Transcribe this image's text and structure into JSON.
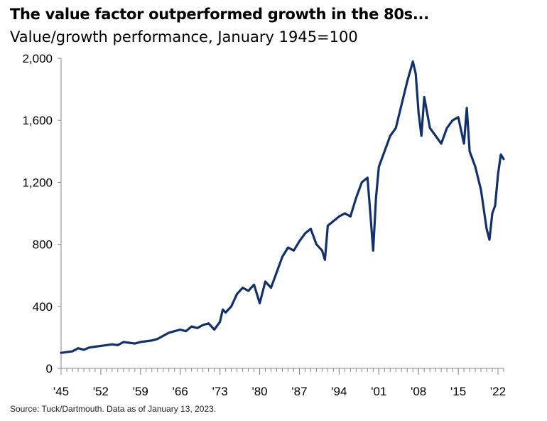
{
  "chart_data": {
    "type": "line",
    "title": "The value factor outperformed growth in the 80s...",
    "subtitle": "Value/growth performance, January 1945=100",
    "source": "Source: Tuck/Dartmouth. Data as of January 13, 2023.",
    "xlabel": "",
    "ylabel": "",
    "xlim": [
      1945,
      2023
    ],
    "ylim": [
      0,
      2000
    ],
    "y_ticks": [
      0,
      400,
      800,
      1200,
      1600,
      2000
    ],
    "y_tick_labels": [
      "0",
      "400",
      "800",
      "1,200",
      "1,600",
      "2,000"
    ],
    "x_ticks": [
      1945,
      1952,
      1959,
      1966,
      1973,
      1980,
      1987,
      1994,
      2001,
      2008,
      2015,
      2022
    ],
    "x_tick_labels": [
      "'45",
      "'52",
      "'59",
      "'66",
      "'73",
      "'80",
      "'87",
      "'94",
      "'01",
      "'08",
      "'15",
      "'22"
    ],
    "grid": false,
    "legend": "none",
    "line_color": "#12306b",
    "series": [
      {
        "name": "Value/growth performance",
        "x": [
          1945,
          1946,
          1947,
          1948,
          1949,
          1950,
          1951,
          1952,
          1953,
          1954,
          1955,
          1956,
          1957,
          1958,
          1959,
          1960,
          1961,
          1962,
          1963,
          1964,
          1965,
          1966,
          1967,
          1968,
          1969,
          1970,
          1971,
          1972,
          1973,
          1973.5,
          1974,
          1975,
          1976,
          1977,
          1978,
          1979,
          1980,
          1981,
          1982,
          1983,
          1984,
          1985,
          1986,
          1987,
          1988,
          1989,
          1990,
          1991,
          1991.5,
          1992,
          1993,
          1994,
          1995,
          1996,
          1997,
          1998,
          1999,
          1999.5,
          2000,
          2000.5,
          2001,
          2002,
          2003,
          2004,
          2005,
          2006,
          2007,
          2007.5,
          2008,
          2008.5,
          2009,
          2010,
          2011,
          2012,
          2013,
          2014,
          2015,
          2016,
          2016.5,
          2017,
          2018,
          2019,
          2020,
          2020.5,
          2021,
          2021.5,
          2022,
          2022.5,
          2023
        ],
        "values": [
          100,
          105,
          110,
          130,
          120,
          135,
          140,
          145,
          150,
          155,
          150,
          170,
          165,
          160,
          170,
          175,
          180,
          190,
          210,
          230,
          240,
          250,
          240,
          270,
          260,
          280,
          290,
          250,
          300,
          380,
          360,
          400,
          480,
          520,
          500,
          540,
          420,
          560,
          520,
          620,
          720,
          780,
          760,
          820,
          870,
          900,
          800,
          760,
          700,
          920,
          950,
          980,
          1000,
          980,
          1100,
          1200,
          1230,
          1000,
          760,
          1100,
          1300,
          1400,
          1500,
          1550,
          1700,
          1850,
          1980,
          1900,
          1650,
          1500,
          1750,
          1550,
          1500,
          1450,
          1550,
          1600,
          1620,
          1450,
          1680,
          1400,
          1300,
          1150,
          900,
          830,
          1000,
          1050,
          1250,
          1380,
          1350
        ]
      }
    ]
  }
}
